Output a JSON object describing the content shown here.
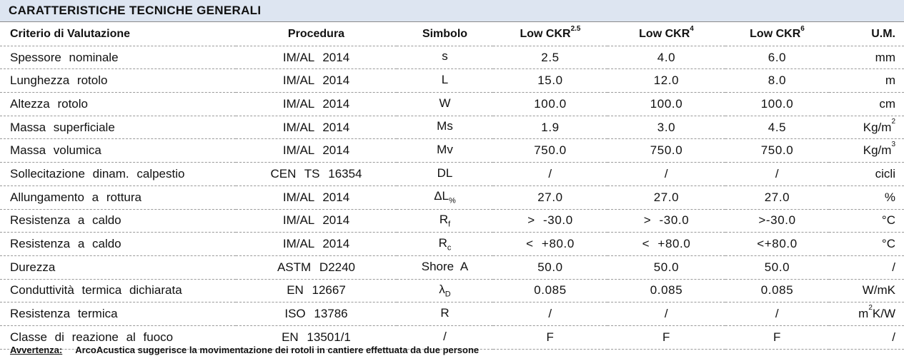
{
  "title": "CARATTERISTICHE TECNICHE GENERALI",
  "headers": {
    "criterio": "Criterio di Valutazione",
    "procedura": "Procedura",
    "simbolo": "Simbolo",
    "col1_base": "Low CKR",
    "col1_sup": "2.5",
    "col2_base": "Low CKR",
    "col2_sup": "4",
    "col3_base": "Low CKR",
    "col3_sup": "6",
    "um": "U.M."
  },
  "rows": [
    {
      "criterio": "Spessore nominale",
      "procedura": "IM/AL 2014",
      "simbolo": "s",
      "sym_sub": "",
      "v1": "2.5",
      "v2": "4.0",
      "v3": "6.0",
      "um": "mm",
      "um_sup": "",
      "um_tail": ""
    },
    {
      "criterio": "Lunghezza rotolo",
      "procedura": "IM/AL 2014",
      "simbolo": "L",
      "sym_sub": "",
      "v1": "15.0",
      "v2": "12.0",
      "v3": "8.0",
      "um": "m",
      "um_sup": "",
      "um_tail": ""
    },
    {
      "criterio": "Altezza rotolo",
      "procedura": "IM/AL 2014",
      "simbolo": "W",
      "sym_sub": "",
      "v1": "100.0",
      "v2": "100.0",
      "v3": "100.0",
      "um": "cm",
      "um_sup": "",
      "um_tail": ""
    },
    {
      "criterio": "Massa superficiale",
      "procedura": "IM/AL 2014",
      "simbolo": "Ms",
      "sym_sub": "",
      "v1": "1.9",
      "v2": "3.0",
      "v3": "4.5",
      "um": "Kg/m",
      "um_sup": "2",
      "um_tail": ""
    },
    {
      "criterio": "Massa volumica",
      "procedura": "IM/AL 2014",
      "simbolo": "Mv",
      "sym_sub": "",
      "v1": "750.0",
      "v2": "750.0",
      "v3": "750.0",
      "um": "Kg/m",
      "um_sup": "3",
      "um_tail": ""
    },
    {
      "criterio": "Sollecitazione dinam. calpestio",
      "procedura": "CEN TS 16354",
      "simbolo": "DL",
      "sym_sub": "",
      "v1": "/",
      "v2": "/",
      "v3": "/",
      "um": "cicli",
      "um_sup": "",
      "um_tail": ""
    },
    {
      "criterio": "Allungamento a rottura",
      "procedura": "IM/AL 2014",
      "simbolo": "ΔL",
      "sym_sub": "%",
      "v1": "27.0",
      "v2": "27.0",
      "v3": "27.0",
      "um": "%",
      "um_sup": "",
      "um_tail": ""
    },
    {
      "criterio": "Resistenza a caldo",
      "procedura": "IM/AL 2014",
      "simbolo": "R",
      "sym_sub": "f",
      "v1": "> -30.0",
      "v2": "> -30.0",
      "v3": ">-30.0",
      "um": "°C",
      "um_sup": "",
      "um_tail": ""
    },
    {
      "criterio": "Resistenza a caldo",
      "procedura": "IM/AL 2014",
      "simbolo": "R",
      "sym_sub": "c",
      "v1": "< +80.0",
      "v2": "< +80.0",
      "v3": "<+80.0",
      "um": "°C",
      "um_sup": "",
      "um_tail": ""
    },
    {
      "criterio": "Durezza",
      "procedura": "ASTM D2240",
      "simbolo": "Shore A",
      "sym_sub": "",
      "v1": "50.0",
      "v2": "50.0",
      "v3": "50.0",
      "um": "/",
      "um_sup": "",
      "um_tail": ""
    },
    {
      "criterio": "Conduttività termica dichiarata",
      "procedura": "EN 12667",
      "simbolo": "λ",
      "sym_sub": "D",
      "v1": "0.085",
      "v2": "0.085",
      "v3": "0.085",
      "um": "W/mK",
      "um_sup": "",
      "um_tail": ""
    },
    {
      "criterio": "Resistenza termica",
      "procedura": "ISO 13786",
      "simbolo": "R",
      "sym_sub": "",
      "v1": "/",
      "v2": "/",
      "v3": "/",
      "um": "m",
      "um_sup": "2",
      "um_tail": "K/W"
    },
    {
      "criterio": "Classe di reazione al fuoco",
      "procedura": "EN 13501/1",
      "simbolo": "/",
      "sym_sub": "",
      "v1": "F",
      "v2": "F",
      "v3": "F",
      "um": "/",
      "um_sup": "",
      "um_tail": ""
    }
  ],
  "warning": {
    "label": "Avvertenza:",
    "text": "ArcoAcustica suggerisce la movimentazione dei rotoli in cantiere effettuata da due persone"
  }
}
